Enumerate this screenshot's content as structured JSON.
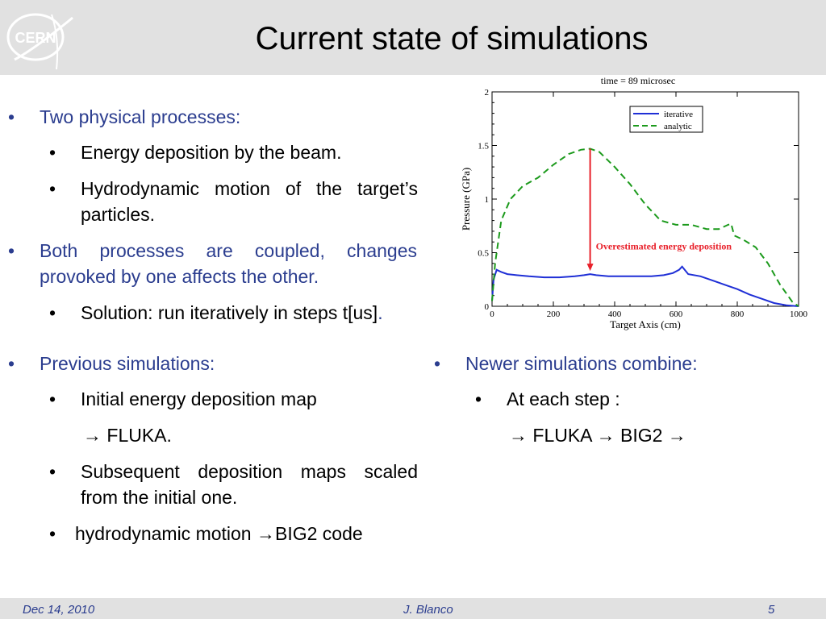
{
  "slide": {
    "title": "Current state of simulations"
  },
  "logo_text": "CERN",
  "bullets": [
    {
      "bullet": "•",
      "text": "Two physical processes:"
    },
    {
      "bullet": "•",
      "text": "Energy deposition by the beam."
    },
    {
      "bullet": "•",
      "text": "Hydrodynamic motion of the target’s particles."
    },
    {
      "bullet": "•",
      "text": "Both processes are coupled, changes provoked by one affects the other."
    },
    {
      "bullet": "•",
      "text": "Solution: run iteratively in steps t[us]",
      "suffix": "."
    }
  ],
  "previous": {
    "heading": "Previous simulations:",
    "items": [
      {
        "bullet": "•",
        "text": "Initial energy deposition map"
      },
      {
        "bullet": "",
        "text": "→ FLUKA."
      },
      {
        "bullet": "•",
        "text": "Subsequent deposition maps scaled from the initial one."
      },
      {
        "bullet": "•",
        "text": "hydrodynamic motion →BIG2 code"
      }
    ]
  },
  "newer": {
    "heading": "Newer simulations combine:",
    "items": [
      {
        "bullet": "•",
        "text": "At each step :"
      },
      {
        "bullet": "",
        "text": "→ FLUKA → BIG2 →"
      }
    ]
  },
  "footer": {
    "date": "Dec 14, 2010",
    "author": "J. Blanco",
    "page": "5"
  },
  "chart_data": {
    "type": "line",
    "title": "time = 89 microsec",
    "xlabel": "Target Axis (cm)",
    "ylabel": "Pressure (GPa)",
    "xlim": [
      0,
      1000
    ],
    "ylim": [
      0,
      2
    ],
    "xticks": [
      "0",
      "200",
      "400",
      "600",
      "800",
      "1000"
    ],
    "yticks": [
      "0",
      "0.5",
      "1",
      "1.5",
      "2"
    ],
    "legend_position": "top-right",
    "annotation": {
      "text": "Overestimated energy deposition",
      "x": 320,
      "y_from": 1.47,
      "y_to": 0.33,
      "color": "#e8202a"
    },
    "series": [
      {
        "name": "iterative",
        "color": "#1f2fd6",
        "style": "solid",
        "x": [
          0,
          5,
          15,
          30,
          50,
          80,
          120,
          170,
          220,
          270,
          300,
          320,
          340,
          380,
          420,
          470,
          520,
          560,
          590,
          610,
          620,
          640,
          680,
          720,
          760,
          800,
          840,
          880,
          920,
          960,
          1000
        ],
        "y": [
          0.05,
          0.25,
          0.34,
          0.32,
          0.3,
          0.29,
          0.28,
          0.27,
          0.27,
          0.28,
          0.29,
          0.3,
          0.29,
          0.28,
          0.28,
          0.28,
          0.28,
          0.29,
          0.31,
          0.34,
          0.37,
          0.3,
          0.28,
          0.24,
          0.2,
          0.16,
          0.11,
          0.07,
          0.03,
          0.01,
          0.0
        ]
      },
      {
        "name": "analytic",
        "color": "#1c9a1c",
        "style": "dashed",
        "x": [
          0,
          10,
          30,
          60,
          100,
          150,
          200,
          250,
          290,
          320,
          350,
          400,
          450,
          500,
          550,
          600,
          650,
          700,
          740,
          770,
          780,
          790,
          820,
          860,
          900,
          940,
          980,
          1000
        ],
        "y": [
          0.05,
          0.4,
          0.8,
          1.0,
          1.12,
          1.2,
          1.32,
          1.42,
          1.46,
          1.47,
          1.44,
          1.3,
          1.14,
          0.95,
          0.8,
          0.76,
          0.76,
          0.72,
          0.72,
          0.76,
          0.77,
          0.66,
          0.62,
          0.55,
          0.4,
          0.2,
          0.04,
          0.0
        ]
      }
    ]
  }
}
